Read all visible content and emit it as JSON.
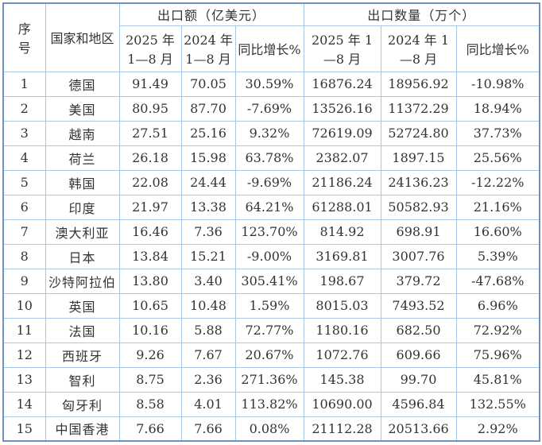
{
  "colors": {
    "text": "#333333",
    "negative": "#ff0000",
    "grid_line": "#a9c7e7",
    "outer_border": "#7090bd",
    "background": "#ffffff"
  },
  "table": {
    "header": {
      "col_serial": "序\n号",
      "col_country": "国家和地区",
      "group_export_value": "出口额（亿美元）",
      "group_export_qty": "出口数量（万个）",
      "sub_value_2025": "2025 年\n1—8 月",
      "sub_value_2024": "2024 年\n1—8 月",
      "sub_value_yoy": "同比增长%",
      "sub_qty_2025": "2025 年 1\n—8 月",
      "sub_qty_2024": "2024 年 1\n—8 月",
      "sub_qty_yoy": "同比增长%"
    },
    "column_names": [
      "序号",
      "国家和地区",
      "出口额2025年1—8月",
      "出口额2024年1—8月",
      "出口额同比增长%",
      "出口数量2025年1—8月",
      "出口数量2024年1—8月",
      "出口数量同比增长%"
    ],
    "rows": [
      [
        "1",
        "德国",
        "91.49",
        "70.05",
        "30.59%",
        "16876.24",
        "18956.92",
        "-10.98%"
      ],
      [
        "2",
        "美国",
        "80.95",
        "87.70",
        "-7.69%",
        "13526.16",
        "11372.29",
        "18.94%"
      ],
      [
        "3",
        "越南",
        "27.51",
        "25.16",
        "9.32%",
        "72619.09",
        "52724.80",
        "37.73%"
      ],
      [
        "4",
        "荷兰",
        "26.18",
        "15.98",
        "63.78%",
        "2382.07",
        "1897.15",
        "25.56%"
      ],
      [
        "5",
        "韩国",
        "22.08",
        "24.44",
        "-9.69%",
        "21186.24",
        "24136.23",
        "-12.22%"
      ],
      [
        "6",
        "印度",
        "21.97",
        "13.38",
        "64.21%",
        "61288.01",
        "50582.93",
        "21.16%"
      ],
      [
        "7",
        "澳大利亚",
        "16.46",
        "7.36",
        "123.70%",
        "814.92",
        "698.91",
        "16.60%"
      ],
      [
        "8",
        "日本",
        "13.84",
        "15.21",
        "-9.00%",
        "3169.81",
        "3007.76",
        "5.39%"
      ],
      [
        "9",
        "沙特阿拉伯",
        "13.80",
        "3.40",
        "305.41%",
        "198.67",
        "379.72",
        "-47.68%"
      ],
      [
        "10",
        "英国",
        "10.65",
        "10.48",
        "1.59%",
        "8015.03",
        "7493.52",
        "6.96%"
      ],
      [
        "11",
        "法国",
        "10.16",
        "5.88",
        "72.77%",
        "1180.16",
        "682.50",
        "72.92%"
      ],
      [
        "12",
        "西班牙",
        "9.26",
        "7.67",
        "20.67%",
        "1072.76",
        "609.66",
        "75.96%"
      ],
      [
        "13",
        "智利",
        "8.75",
        "2.36",
        "271.36%",
        "145.38",
        "99.70",
        "45.81%"
      ],
      [
        "14",
        "匈牙利",
        "8.58",
        "4.01",
        "113.82%",
        "10690.00",
        "4596.84",
        "132.55%"
      ],
      [
        "15",
        "中国香港",
        "7.66",
        "7.66",
        "0.08%",
        "21112.28",
        "20513.66",
        "2.92%"
      ]
    ]
  }
}
